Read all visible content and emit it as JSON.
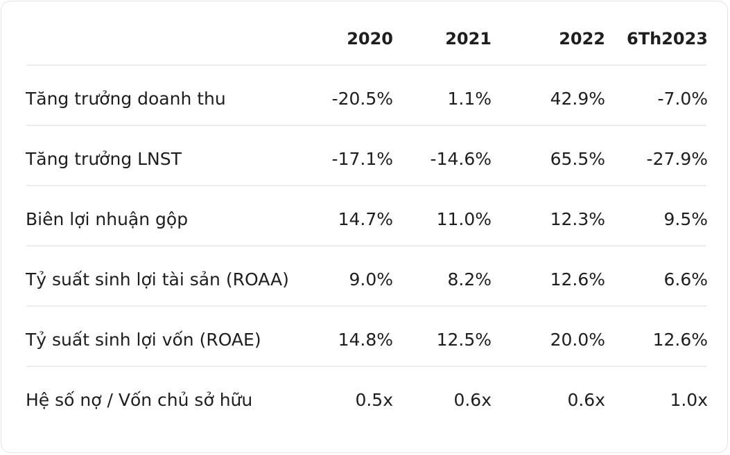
{
  "table": {
    "columns": [
      "2020",
      "2021",
      "2022",
      "6Th2023"
    ],
    "rows": [
      {
        "label": "Tăng trưởng doanh thu",
        "cells": [
          "-20.5%",
          "1.1%",
          "42.9%",
          "-7.0%"
        ]
      },
      {
        "label": "Tăng trưởng LNST",
        "cells": [
          "-17.1%",
          "-14.6%",
          "65.5%",
          "-27.9%"
        ]
      },
      {
        "label": "Biên lợi nhuận gộp",
        "cells": [
          "14.7%",
          "11.0%",
          "12.3%",
          "9.5%"
        ]
      },
      {
        "label": "Tỷ suất sinh lợi tài sản (ROAA)",
        "cells": [
          "9.0%",
          "8.2%",
          "12.6%",
          "6.6%"
        ]
      },
      {
        "label": "Tỷ suất sinh lợi vốn (ROAE)",
        "cells": [
          "14.8%",
          "12.5%",
          "20.0%",
          "12.6%"
        ]
      },
      {
        "label": "Hệ số nợ / Vốn chủ sở hữu",
        "cells": [
          "0.5x",
          "0.6x",
          "0.6x",
          "1.0x"
        ]
      }
    ]
  }
}
